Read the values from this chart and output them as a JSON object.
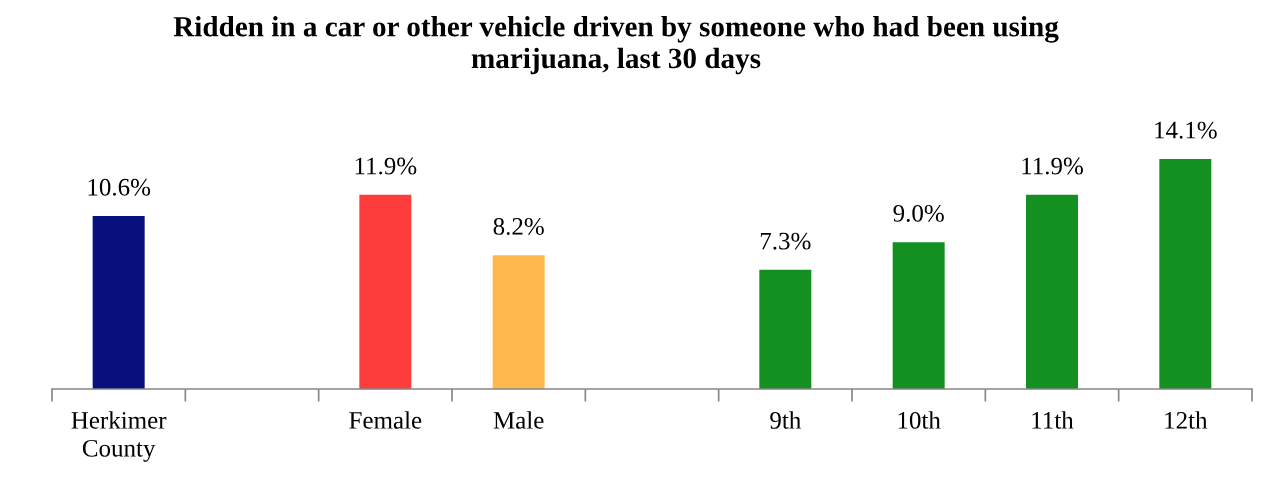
{
  "chart_data": {
    "type": "bar",
    "title": "Ridden in a car or other vehicle driven by someone who had been using\nmarijuana, last 30 days",
    "categories": [
      "Herkimer\nCounty",
      null,
      "Female",
      "Male",
      null,
      "9th",
      "10th",
      "11th",
      "12th"
    ],
    "values": [
      10.6,
      null,
      11.9,
      8.2,
      null,
      7.3,
      9.0,
      11.9,
      14.1
    ],
    "colors": [
      "#08107f",
      null,
      "#ff3d3d",
      "#ffb84d",
      null,
      "#139020",
      "#139020",
      "#139020",
      "#139020"
    ],
    "value_labels": [
      "10.6%",
      null,
      "11.9%",
      "8.2%",
      null,
      "7.3%",
      "9.0%",
      "11.9%",
      "14.1%"
    ],
    "tick_labels": "x"
  }
}
